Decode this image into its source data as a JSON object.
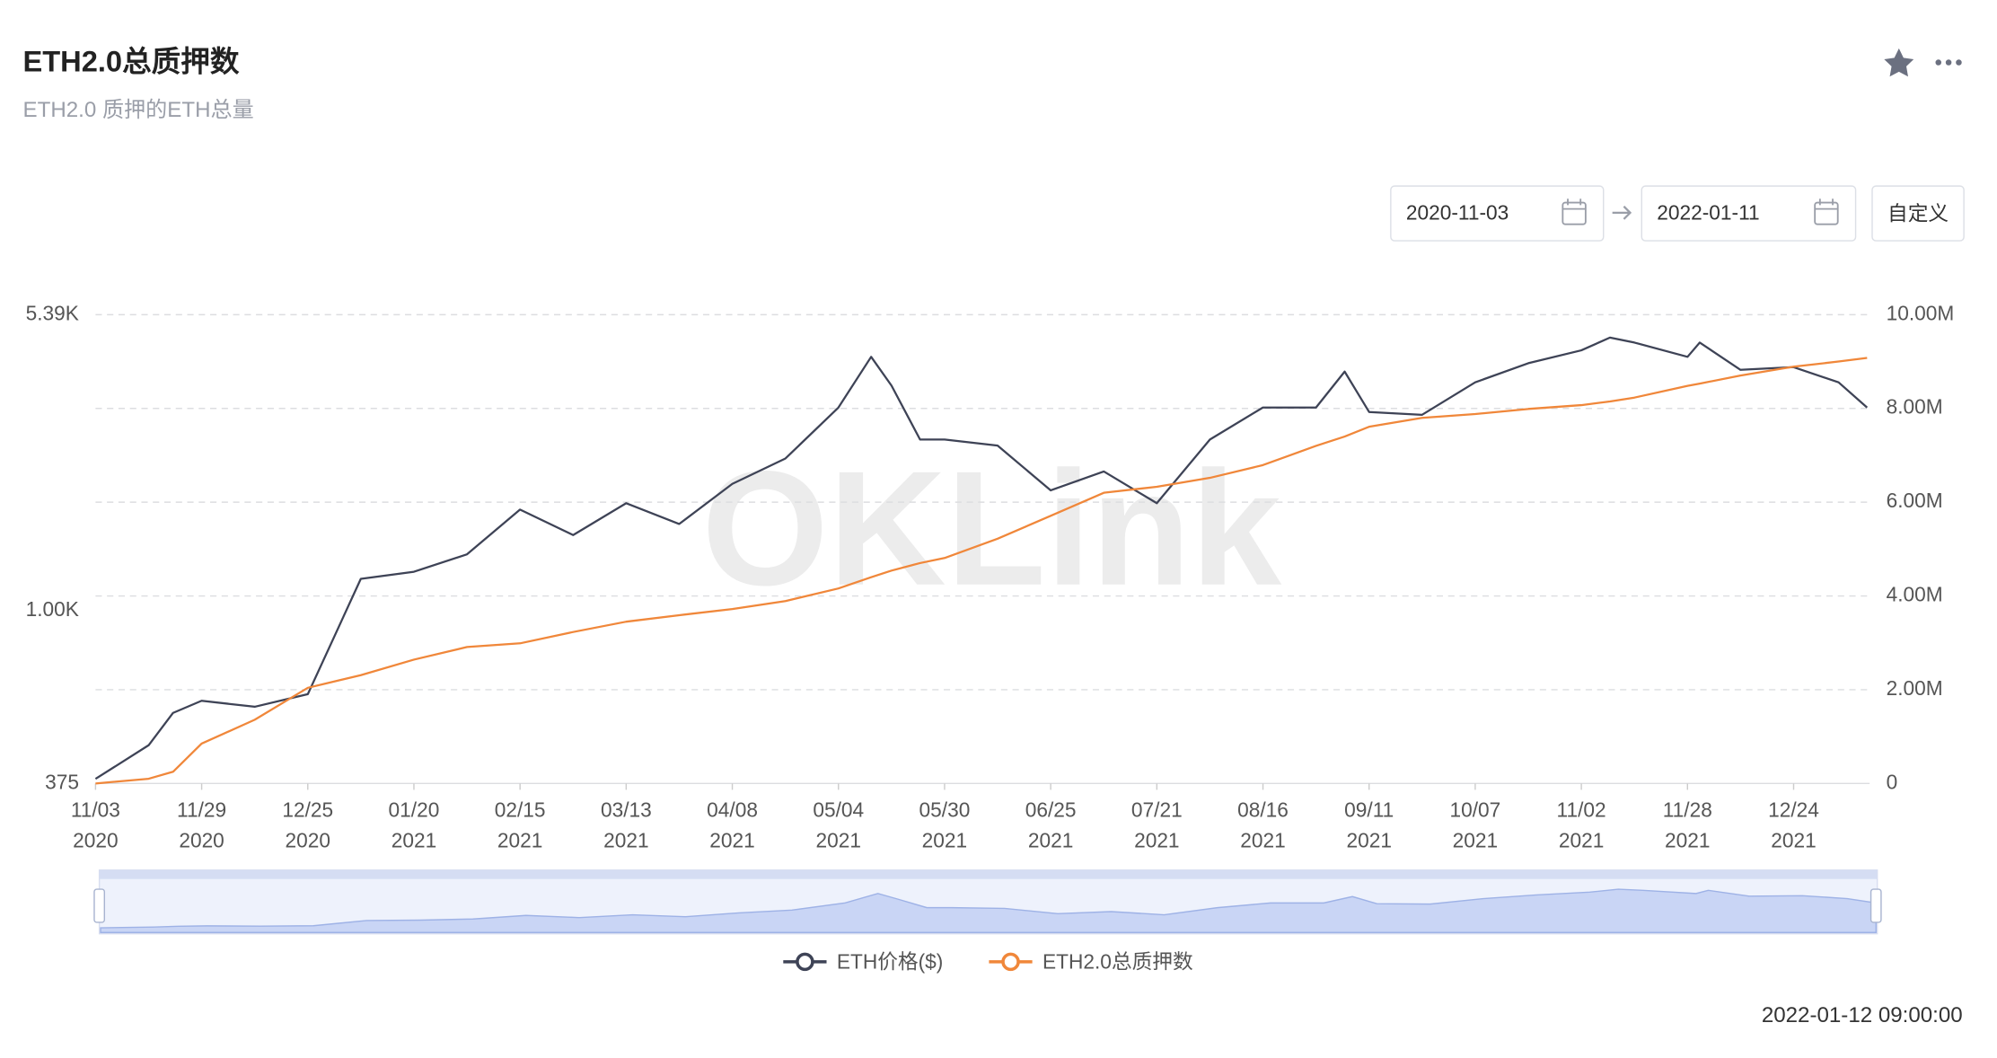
{
  "header": {
    "title": "ETH2.0总质押数",
    "subtitle": "ETH2.0 质押的ETH总量"
  },
  "controls": {
    "start_date": "2020-11-03",
    "end_date": "2022-01-11",
    "custom_button": "自定义"
  },
  "watermark": "OKLink",
  "timestamp": "2022-01-12 09:00:00",
  "chart_data": {
    "type": "line",
    "log_y": true,
    "grid": true,
    "legend": "bottom",
    "x": [
      "2020-11-03",
      "2020-11-16",
      "2020-11-22",
      "2020-11-29",
      "2020-12-12",
      "2020-12-25",
      "2021-01-07",
      "2021-01-20",
      "2021-02-02",
      "2021-02-15",
      "2021-02-28",
      "2021-03-13",
      "2021-03-26",
      "2021-04-08",
      "2021-04-21",
      "2021-05-04",
      "2021-05-12",
      "2021-05-17",
      "2021-05-24",
      "2021-05-30",
      "2021-06-12",
      "2021-06-25",
      "2021-07-08",
      "2021-07-21",
      "2021-08-03",
      "2021-08-16",
      "2021-08-29",
      "2021-09-05",
      "2021-09-11",
      "2021-09-24",
      "2021-10-07",
      "2021-10-20",
      "2021-11-02",
      "2021-11-09",
      "2021-11-15",
      "2021-11-28",
      "2021-12-01",
      "2021-12-11",
      "2021-12-24",
      "2022-01-04",
      "2022-01-11"
    ],
    "xlim": [
      "2020-11-03",
      "2022-01-11"
    ],
    "xticks": [
      {
        "value": "2020-11-03",
        "label": "11/03",
        "year": "2020"
      },
      {
        "value": "2020-11-29",
        "label": "11/29",
        "year": "2020"
      },
      {
        "value": "2020-12-25",
        "label": "12/25",
        "year": "2020"
      },
      {
        "value": "2021-01-20",
        "label": "01/20",
        "year": "2021"
      },
      {
        "value": "2021-02-15",
        "label": "02/15",
        "year": "2021"
      },
      {
        "value": "2021-03-13",
        "label": "03/13",
        "year": "2021"
      },
      {
        "value": "2021-04-08",
        "label": "04/08",
        "year": "2021"
      },
      {
        "value": "2021-05-04",
        "label": "05/04",
        "year": "2021"
      },
      {
        "value": "2021-05-30",
        "label": "05/30",
        "year": "2021"
      },
      {
        "value": "2021-06-25",
        "label": "06/25",
        "year": "2021"
      },
      {
        "value": "2021-07-21",
        "label": "07/21",
        "year": "2021"
      },
      {
        "value": "2021-08-16",
        "label": "08/16",
        "year": "2021"
      },
      {
        "value": "2021-09-11",
        "label": "09/11",
        "year": "2021"
      },
      {
        "value": "2021-10-07",
        "label": "10/07",
        "year": "2021"
      },
      {
        "value": "2021-11-02",
        "label": "11/02",
        "year": "2021"
      },
      {
        "value": "2021-11-28",
        "label": "11/28",
        "year": "2021"
      },
      {
        "value": "2021-12-24",
        "label": "12/24",
        "year": "2021"
      }
    ],
    "ylim": [
      375,
      5390
    ],
    "yticks": [
      375,
      {
        "value": 1000,
        "label": "1.00K"
      },
      {
        "value": 5390,
        "label": "5.39K"
      }
    ],
    "y2lim": [
      0,
      10000000
    ],
    "y2ticks": [
      0,
      {
        "value": 2000000,
        "label": "2.00M"
      },
      {
        "value": 4000000,
        "label": "4.00M"
      },
      {
        "value": 6000000,
        "label": "6.00M"
      },
      {
        "value": 8000000,
        "label": "8.00M"
      },
      {
        "value": 10000000,
        "label": "10.00M"
      }
    ],
    "series": [
      {
        "name": "ETH价格($)",
        "color": "#3e4356",
        "values": [
          385,
          466,
          560,
          600,
          580,
          623,
          1200,
          1250,
          1380,
          1780,
          1540,
          1845,
          1640,
          2060,
          2380,
          3180,
          4240,
          3600,
          2650,
          2650,
          2560,
          1985,
          2210,
          1845,
          2650,
          3180,
          3180,
          3900,
          3100,
          3050,
          3670,
          4090,
          4400,
          4730,
          4600,
          4240,
          4600,
          3940,
          4000,
          3670,
          3180
        ]
      },
      {
        "name": "ETH2.0总质押数",
        "color": "#f0873a",
        "axis": "y2",
        "values": [
          0,
          100000,
          250000,
          850000,
          1360000,
          2040000,
          2310000,
          2640000,
          2910000,
          2990000,
          3230000,
          3450000,
          3590000,
          3720000,
          3890000,
          4160000,
          4400000,
          4540000,
          4700000,
          4810000,
          5220000,
          5710000,
          6200000,
          6330000,
          6520000,
          6790000,
          7200000,
          7400000,
          7610000,
          7800000,
          7880000,
          7990000,
          8070000,
          8150000,
          8230000,
          8480000,
          8530000,
          8700000,
          8890000,
          9000000,
          9080000
        ]
      }
    ]
  }
}
